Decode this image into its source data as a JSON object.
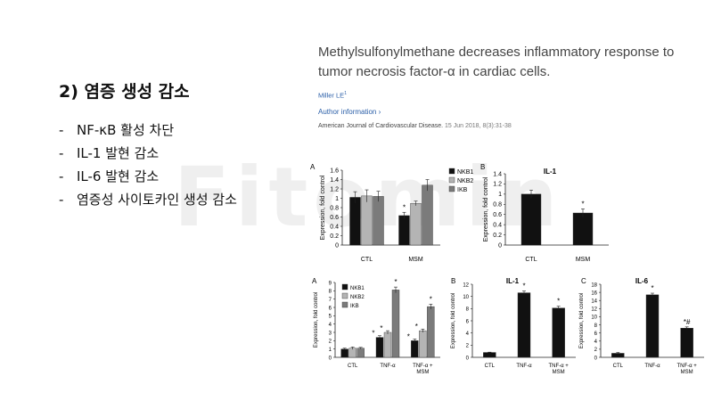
{
  "watermark": "Fitomin",
  "slide": {
    "heading": "2) 염증 생성 감소",
    "bullets": [
      "NF-κB 활성 차단",
      "IL-1 발현 감소",
      "IL-6 발현 감소",
      "염증성 사이토카인 생성 감소"
    ]
  },
  "article": {
    "title": "Methylsulfonylmethane decreases inflammatory response to tumor necrosis factor-α in cardiac cells.",
    "author": "Miller LE",
    "author_sup": "1",
    "info_link": "Author information ›",
    "journal": "American Journal of Cardiovascular Disease.",
    "date": "15 Jun 2018, 8(3):31-38"
  },
  "chart_data": [
    {
      "type": "bar",
      "panel": "A",
      "categories": [
        "CTL",
        "MSM"
      ],
      "series": [
        {
          "name": "NKB1",
          "values": [
            1.02,
            0.63
          ],
          "errors": [
            0.12,
            0.07
          ]
        },
        {
          "name": "NKB2",
          "values": [
            1.05,
            0.89
          ],
          "errors": [
            0.13,
            0.05
          ]
        },
        {
          "name": "IKB",
          "values": [
            1.04,
            1.28
          ],
          "errors": [
            0.11,
            0.12
          ]
        }
      ],
      "significance": [
        "",
        "*"
      ],
      "ylabel": "Expression, fold control",
      "ylim": [
        0,
        1.6
      ],
      "yticks": [
        "0",
        "0.2",
        "0.4",
        "0.6",
        "0.8",
        "1",
        "1.2",
        "1.4",
        "1.6"
      ],
      "legend": "top-right"
    },
    {
      "type": "bar",
      "panel": "B",
      "title": "IL-1",
      "categories": [
        "CTL",
        "MSM"
      ],
      "series": [
        {
          "values": [
            1.0,
            0.63
          ],
          "errors": [
            0.08,
            0.08
          ]
        }
      ],
      "significance": [
        "",
        "*"
      ],
      "ylabel": "Expression, fold control",
      "ylim": [
        0,
        1.4
      ],
      "yticks": [
        "0",
        "0.2",
        "0.4",
        "0.6",
        "0.8",
        "1",
        "1.2",
        "1.4"
      ]
    },
    {
      "type": "bar",
      "panel": "A",
      "categories": [
        "CTL",
        "TNF-α",
        "TNF-α +\nMSM"
      ],
      "series": [
        {
          "name": "NKB1",
          "values": [
            1.0,
            2.4,
            2.0
          ],
          "errors": [
            0.1,
            0.2,
            0.2
          ]
        },
        {
          "name": "NKB2",
          "values": [
            1.1,
            3.0,
            3.2
          ],
          "errors": [
            0.15,
            0.2,
            0.2
          ]
        },
        {
          "name": "IKB",
          "values": [
            1.1,
            8.1,
            6.1
          ],
          "errors": [
            0.1,
            0.35,
            0.3
          ]
        }
      ],
      "significance": [
        [
          "",
          "",
          ""
        ],
        [
          "*",
          "*",
          "*"
        ],
        [
          "*",
          "*",
          "*"
        ]
      ],
      "ylabel": "Expression, fold control",
      "ylim": [
        0,
        9
      ],
      "yticks": [
        "0",
        "1",
        "2",
        "3",
        "4",
        "5",
        "6",
        "7",
        "8",
        "9"
      ],
      "legend": "top-left"
    },
    {
      "type": "bar",
      "panel": "B",
      "title": "IL-1",
      "categories": [
        "CTL",
        "TNF-α",
        "TNF-α +\nMSM"
      ],
      "series": [
        {
          "values": [
            0.8,
            10.6,
            8.1
          ],
          "errors": [
            0.05,
            0.3,
            0.3
          ]
        }
      ],
      "significance": [
        "",
        "*",
        "*"
      ],
      "ylabel": "Expression, fold control",
      "ylim": [
        0,
        12
      ],
      "yticks": [
        "0",
        "2",
        "4",
        "6",
        "8",
        "10",
        "12"
      ]
    },
    {
      "type": "bar",
      "panel": "C",
      "title": "IL-6",
      "categories": [
        "CTL",
        "TNF-α",
        "TNF-α +\nMSM"
      ],
      "series": [
        {
          "values": [
            1.0,
            15.4,
            7.2
          ],
          "errors": [
            0.2,
            0.4,
            0.3
          ]
        }
      ],
      "significance": [
        "",
        "*",
        "*#"
      ],
      "ylabel": "Expression, fold control",
      "ylim": [
        0,
        18
      ],
      "yticks": [
        "0",
        "2",
        "4",
        "6",
        "8",
        "10",
        "12",
        "14",
        "16",
        "18"
      ]
    }
  ],
  "colors": {
    "black": "#111111",
    "dark_gray": "#555555",
    "light_gray": "#b4b4b4",
    "gray": "#7b7b7b",
    "link": "#2b5fa8"
  }
}
